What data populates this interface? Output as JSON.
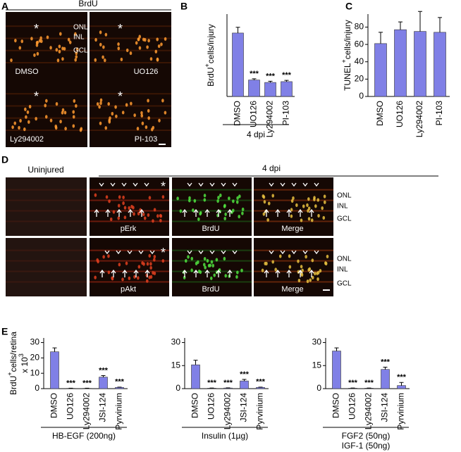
{
  "panel_labels": [
    "A",
    "B",
    "C",
    "D",
    "E"
  ],
  "panel_a": {
    "title": "BrdU",
    "layers": [
      "ONL",
      "INL",
      "GCL"
    ],
    "images": [
      "DMSO",
      "UO126",
      "Ly294002",
      "PI-103"
    ],
    "asterisk": "*"
  },
  "panel_d": {
    "headers": [
      "Uninjured",
      "4 dpi"
    ],
    "rows": [
      [
        "pErk",
        "BrdU",
        "Merge"
      ],
      [
        "pAkt",
        "BrdU",
        "Merge"
      ]
    ],
    "layers": [
      "ONL",
      "INL",
      "GCL"
    ],
    "asterisk": "*"
  },
  "chart_data": [
    {
      "type": "bar",
      "color": "#8080e6",
      "ylabel": [
        [
          "BrdU",
          "+",
          "cells/injury"
        ]
      ],
      "categories": [
        "DMSO",
        "UO126",
        "Ly294002",
        "PI-103"
      ],
      "values": [
        77,
        20,
        17,
        18
      ],
      "errors": [
        7,
        1.5,
        1.5,
        1.5
      ],
      "bar_labels": [
        null,
        "***",
        "***",
        "***"
      ],
      "ylim": [
        0,
        100
      ],
      "group_label": [
        "4 dpi"
      ]
    },
    {
      "type": "bar",
      "color": "#8080e6",
      "ylabel": [
        [
          "TUNEL",
          "+",
          "cells/injury"
        ]
      ],
      "categories": [
        "DMSO",
        "UO126",
        "Ly294002",
        "PI-103"
      ],
      "values": [
        61,
        77,
        75,
        74
      ],
      "errors": [
        13,
        9,
        23,
        17
      ],
      "ylim": [
        0,
        95
      ],
      "yticks": [
        0,
        20,
        40,
        60,
        80
      ]
    },
    {
      "type": "bar",
      "color": "#8080e6",
      "ylabel": [
        [
          "BrdU",
          "+",
          "cells/retina"
        ],
        [
          "x 10",
          "3"
        ]
      ],
      "categories": [
        "DMSO",
        "UO126",
        "Ly294002",
        "JSI-124",
        "Pyrvinium"
      ],
      "values": [
        24,
        0.2,
        0.2,
        7.5,
        0.8
      ],
      "errors": [
        2.5,
        0.1,
        0.1,
        1,
        0.2
      ],
      "bar_labels": [
        null,
        "***",
        "***",
        "***",
        "***"
      ],
      "ylim": [
        0,
        33
      ],
      "yticks": [
        0,
        10,
        20,
        30
      ],
      "group_label": [
        "HB-EGF (200ng)"
      ]
    },
    {
      "type": "bar",
      "color": "#8080e6",
      "categories": [
        "DMSO",
        "UO126",
        "Ly294002",
        "JSI-124",
        "Pyrvinium"
      ],
      "values": [
        15.5,
        0.3,
        0.4,
        5,
        0.8
      ],
      "errors": [
        3,
        0.1,
        0.1,
        1,
        0.2
      ],
      "bar_labels": [
        null,
        "***",
        "***",
        "***",
        "***"
      ],
      "ylim": [
        0,
        33
      ],
      "yticks": [
        0,
        15,
        30
      ],
      "group_label": [
        "Insulin (1µg)"
      ]
    },
    {
      "type": "bar",
      "color": "#8080e6",
      "categories": [
        "DMSO",
        "UO126",
        "Ly294002",
        "JSI-124",
        "Pyrvinium"
      ],
      "values": [
        24.5,
        0.3,
        0.3,
        12.5,
        2
      ],
      "errors": [
        2,
        0.1,
        0.1,
        1.5,
        2
      ],
      "bar_labels": [
        null,
        "***",
        "***",
        "***",
        "***"
      ],
      "ylim": [
        0,
        33
      ],
      "yticks": [
        0,
        15,
        30
      ],
      "group_label": [
        "FGF2 (50ng)",
        "IGF-1 (50ng)"
      ]
    }
  ]
}
